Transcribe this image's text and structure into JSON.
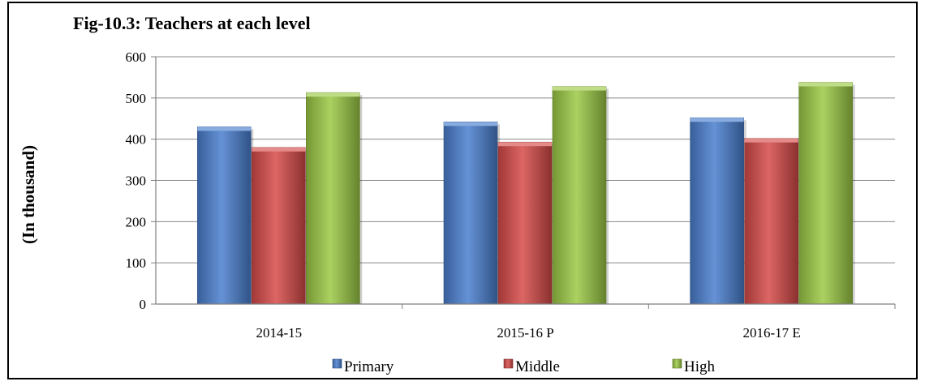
{
  "chart_data": {
    "type": "bar",
    "title": "Fig-10.3: Teachers at each level",
    "ylabel": "(In thousand)",
    "xlabel": "",
    "ylim": [
      0,
      600
    ],
    "yticks": [
      0,
      100,
      200,
      300,
      400,
      500,
      600
    ],
    "grid": true,
    "legend_position": "bottom",
    "categories": [
      "2014-15",
      "2015-16 P",
      "2016-17 E"
    ],
    "series": [
      {
        "name": "Primary",
        "color": "#4a7fcf",
        "values": [
          430,
          442,
          452
        ]
      },
      {
        "name": "Middle",
        "color": "#d64b49",
        "values": [
          380,
          393,
          402
        ]
      },
      {
        "name": "High",
        "color": "#9cc945",
        "values": [
          513,
          528,
          538
        ]
      }
    ]
  }
}
